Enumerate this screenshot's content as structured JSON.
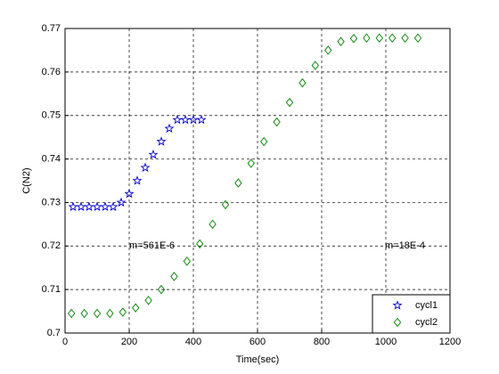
{
  "chart_data": {
    "type": "scatter",
    "xlabel": "Time(sec)",
    "ylabel": "C(N2)",
    "xlim": [
      0,
      1200
    ],
    "xticks": [
      0,
      200,
      400,
      600,
      800,
      1000,
      1200
    ],
    "ylim": [
      0.7,
      0.77
    ],
    "yticks": [
      0.7,
      0.71,
      0.72,
      0.73,
      0.74,
      0.75,
      0.76,
      0.77
    ],
    "grid": true,
    "legend": "lower right",
    "series": [
      {
        "name": "cycl1",
        "color": "#0000cc",
        "marker": "star",
        "x": [
          25,
          50,
          75,
          100,
          125,
          150,
          175,
          200,
          225,
          250,
          275,
          300,
          325,
          350,
          375,
          400,
          425
        ],
        "values": [
          0.729,
          0.729,
          0.729,
          0.729,
          0.729,
          0.729,
          0.73,
          0.732,
          0.735,
          0.738,
          0.741,
          0.744,
          0.747,
          0.749,
          0.749,
          0.749,
          0.749
        ]
      },
      {
        "name": "cycl2",
        "color": "#008000",
        "marker": "diamond",
        "x": [
          20,
          60,
          100,
          140,
          180,
          220,
          260,
          300,
          340,
          380,
          420,
          460,
          500,
          540,
          580,
          620,
          660,
          700,
          740,
          780,
          820,
          860,
          900,
          940,
          980,
          1020,
          1060,
          1100
        ],
        "values": [
          0.7045,
          0.7045,
          0.7045,
          0.7045,
          0.7048,
          0.7058,
          0.7075,
          0.71,
          0.713,
          0.7165,
          0.7205,
          0.725,
          0.7295,
          0.7345,
          0.739,
          0.744,
          0.7485,
          0.753,
          0.7575,
          0.7615,
          0.765,
          0.767,
          0.7677,
          0.7678,
          0.7678,
          0.7678,
          0.7678,
          0.7678
        ]
      }
    ],
    "annotations": [
      "m=561E-6",
      "m=18E-4"
    ]
  }
}
